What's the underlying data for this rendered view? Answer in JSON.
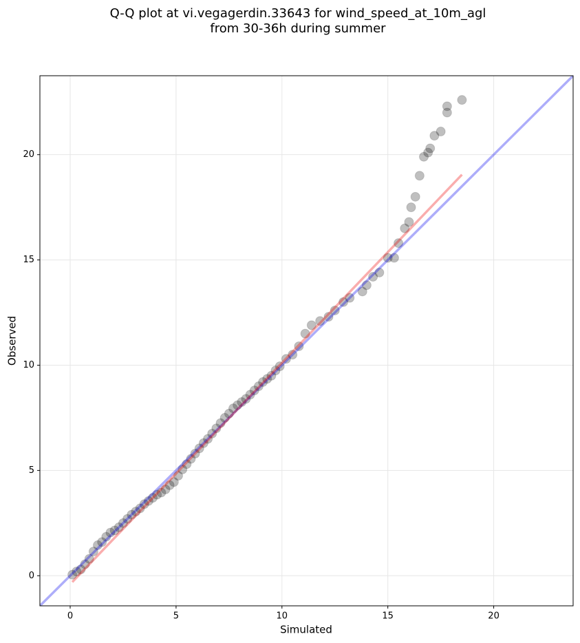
{
  "chart_data": {
    "type": "scatter",
    "title": [
      "Q-Q plot at vi.vegagerdin.33643 for wind_speed_at_10m_agl",
      "from 30-36h during summer"
    ],
    "x_label": "Simulated",
    "y_label": "Observed",
    "xlim": [
      -1.43,
      23.75
    ],
    "ylim": [
      -1.43,
      23.75
    ],
    "xticks": [
      0,
      5,
      10,
      15,
      20
    ],
    "yticks": [
      0,
      5,
      10,
      15,
      20
    ],
    "grid": true,
    "color": "#000000",
    "alpha": 0.25,
    "x": [
      0.1,
      0.3,
      0.5,
      0.7,
      0.9,
      1.1,
      1.3,
      1.5,
      1.7,
      1.9,
      2.1,
      2.3,
      2.5,
      2.7,
      2.9,
      3.1,
      3.3,
      3.5,
      3.7,
      3.9,
      4.1,
      4.3,
      4.5,
      4.7,
      4.9,
      5.1,
      5.3,
      5.5,
      5.7,
      5.9,
      6.1,
      6.3,
      6.5,
      6.7,
      6.9,
      7.1,
      7.3,
      7.5,
      7.7,
      7.9,
      8.1,
      8.3,
      8.5,
      8.7,
      8.9,
      9.1,
      9.3,
      9.5,
      9.7,
      9.9,
      10.2,
      10.5,
      10.8,
      11.1,
      11.4,
      11.8,
      12.2,
      12.5,
      12.9,
      13.2,
      13.8,
      14.0,
      14.3,
      14.6,
      15.0,
      15.3,
      15.5,
      15.8,
      16.0,
      16.1,
      16.3,
      16.5,
      16.7,
      16.9,
      17.0,
      17.2,
      17.5,
      17.8,
      17.8,
      18.5
    ],
    "values": [
      0.05,
      0.2,
      0.3,
      0.55,
      0.8,
      1.15,
      1.45,
      1.6,
      1.85,
      2.05,
      2.15,
      2.3,
      2.5,
      2.7,
      2.9,
      3.05,
      3.2,
      3.4,
      3.55,
      3.7,
      3.85,
      3.95,
      4.1,
      4.3,
      4.45,
      4.75,
      5.05,
      5.3,
      5.55,
      5.8,
      6.05,
      6.3,
      6.5,
      6.75,
      7.0,
      7.25,
      7.5,
      7.7,
      7.95,
      8.1,
      8.25,
      8.4,
      8.6,
      8.8,
      9.0,
      9.2,
      9.35,
      9.5,
      9.75,
      9.95,
      10.3,
      10.5,
      10.9,
      11.5,
      11.9,
      12.1,
      12.3,
      12.6,
      13.0,
      13.2,
      13.5,
      13.8,
      14.2,
      14.4,
      15.1,
      15.1,
      15.8,
      16.5,
      16.8,
      17.5,
      18.0,
      19.0,
      19.9,
      20.1,
      20.3,
      20.9,
      21.1,
      22.0,
      22.3,
      22.6
    ],
    "lines": [
      {
        "color": "#0000ee",
        "x": [
          -1.43,
          23.75
        ],
        "y": [
          -1.43,
          23.75
        ]
      },
      {
        "color": "#ee0000",
        "x": [
          0.1,
          18.5
        ],
        "y": [
          -0.3,
          19.05
        ]
      }
    ]
  }
}
